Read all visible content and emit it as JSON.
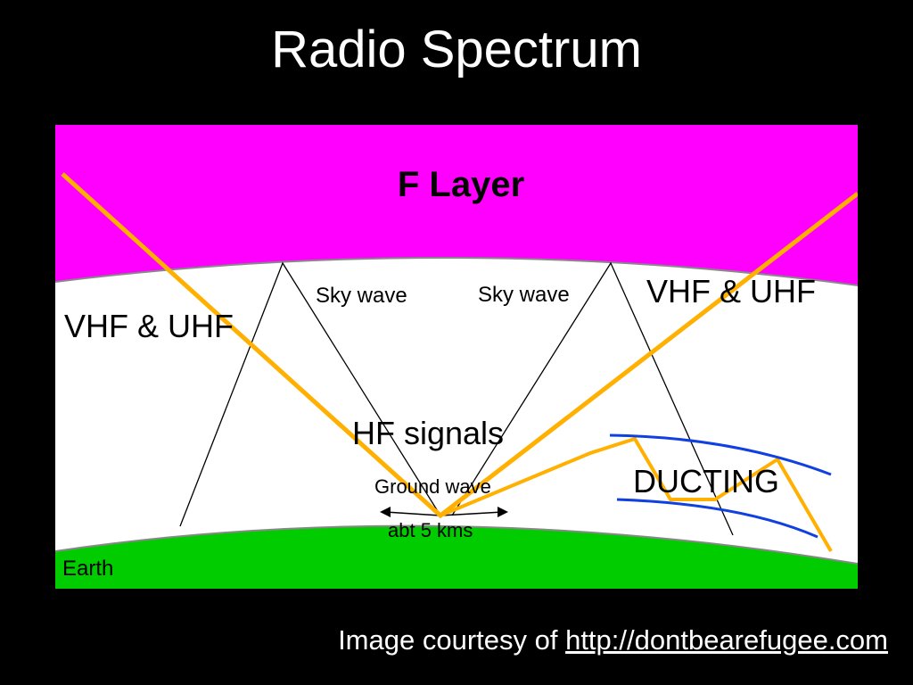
{
  "slide": {
    "title": "Radio Spectrum",
    "caption_prefix": "Image courtesy of ",
    "caption_link": "http://dontbearefugee.com"
  },
  "diagram": {
    "f_layer": "F Layer",
    "vhf_uhf_left": "VHF & UHF",
    "vhf_uhf_right": "VHF & UHF",
    "sky_wave_left": "Sky wave",
    "sky_wave_right": "Sky wave",
    "hf_signals": "HF signals",
    "ground_wave": "Ground wave",
    "distance": "abt 5 kms",
    "ducting": "DUCTING",
    "earth": "Earth",
    "colors": {
      "f_layer": "#ff00ff",
      "atmosphere": "#ffffff",
      "earth": "#00cc00",
      "vhf_ray": "#ffb000",
      "duct": "#1040e0",
      "sky_wave_line": "#000000"
    }
  }
}
